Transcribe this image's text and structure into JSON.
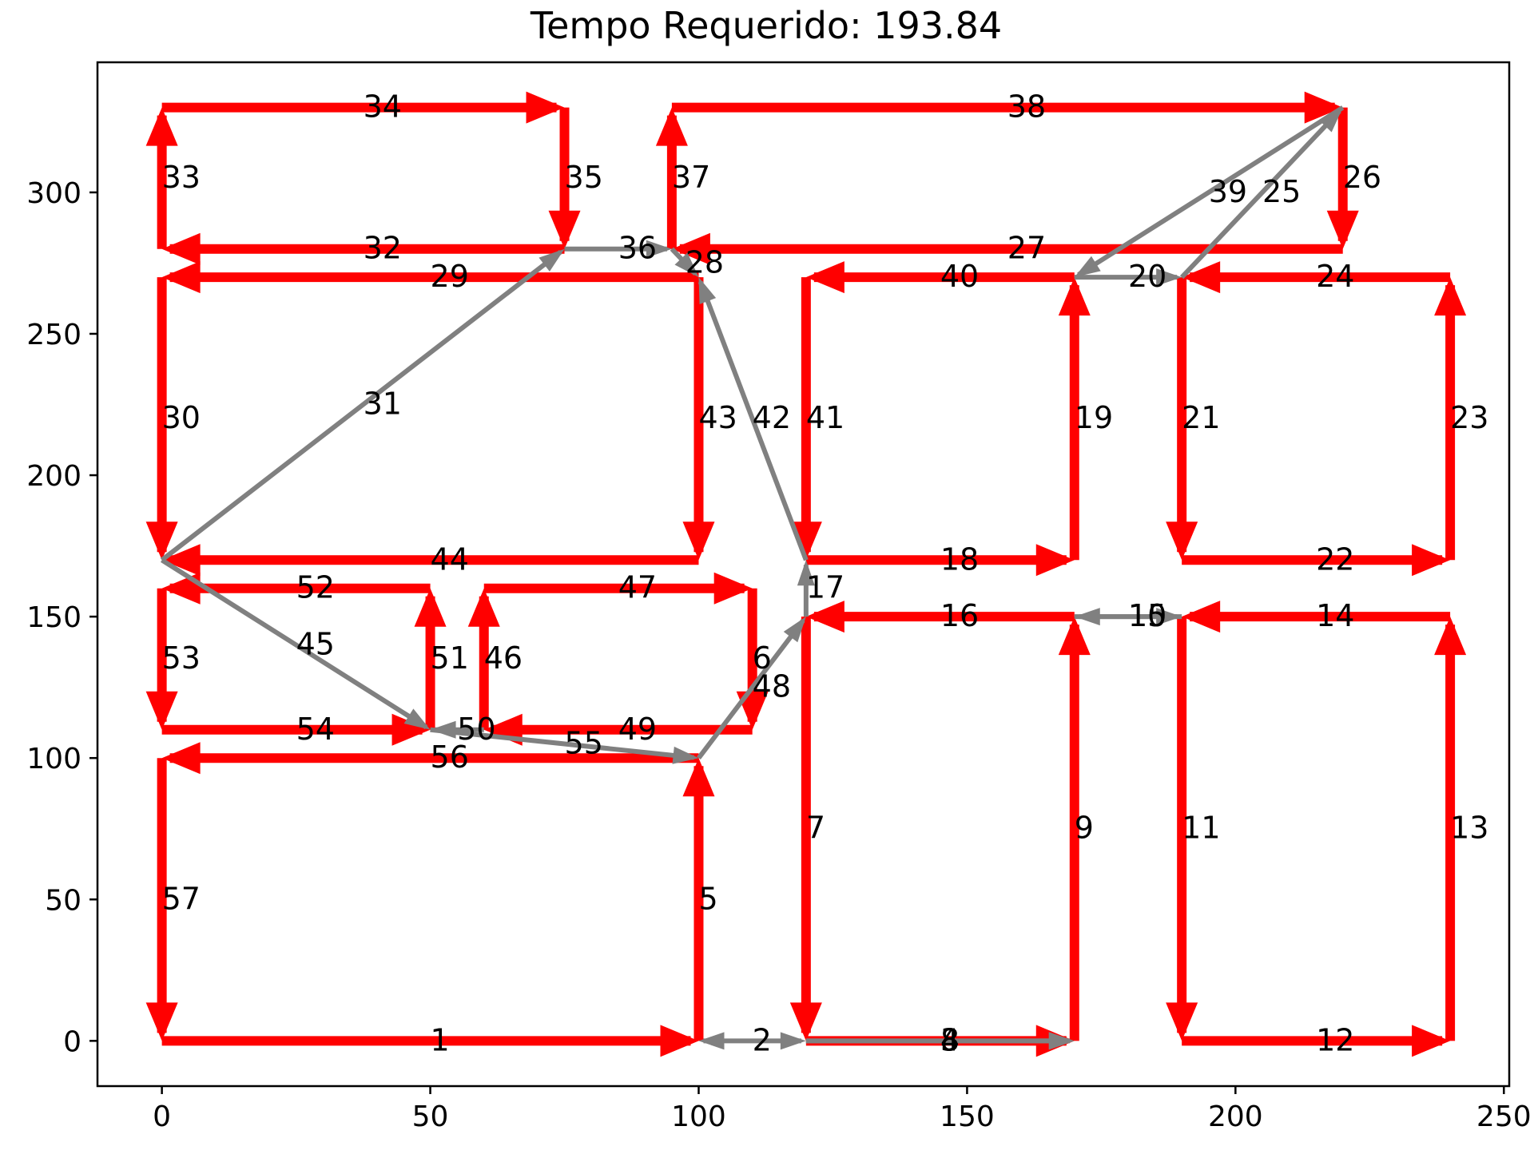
{
  "chart_data": {
    "type": "route-graph",
    "title": "Tempo Requerido: 193.84",
    "xlabel": "",
    "ylabel": "",
    "xlim": [
      -12,
      251
    ],
    "ylim": [
      -16,
      346
    ],
    "xticks": [
      0,
      50,
      100,
      150,
      200,
      250
    ],
    "yticks": [
      0,
      50,
      100,
      150,
      200,
      250,
      300
    ],
    "grid": false,
    "legend": null,
    "colors": {
      "required": "#ff0000",
      "deadhead": "#808080"
    },
    "edges": [
      {
        "id": 1,
        "kind": "required",
        "from": [
          0,
          0
        ],
        "to": [
          100,
          0
        ]
      },
      {
        "id": 2,
        "kind": "deadhead",
        "from": [
          100,
          0
        ],
        "to": [
          120,
          0
        ],
        "both_ends": true
      },
      {
        "id": 3,
        "kind": "required",
        "from": [
          120,
          0
        ],
        "to": [
          170,
          0
        ]
      },
      {
        "id": 4,
        "kind": "deadhead",
        "from": [
          120,
          0
        ],
        "to": [
          170,
          0
        ]
      },
      {
        "id": 5,
        "kind": "required",
        "from": [
          100,
          0
        ],
        "to": [
          100,
          100
        ]
      },
      {
        "id": 6,
        "kind": "required",
        "from": [
          110,
          160
        ],
        "to": [
          110,
          110
        ]
      },
      {
        "id": 7,
        "kind": "required",
        "from": [
          120,
          150
        ],
        "to": [
          120,
          0
        ]
      },
      {
        "id": 8,
        "kind": "deadhead",
        "from": [
          120,
          0
        ],
        "to": [
          170,
          0
        ]
      },
      {
        "id": 9,
        "kind": "required",
        "from": [
          170,
          0
        ],
        "to": [
          170,
          150
        ]
      },
      {
        "id": 10,
        "kind": "deadhead",
        "from": [
          170,
          150
        ],
        "to": [
          190,
          150
        ]
      },
      {
        "id": 11,
        "kind": "required",
        "from": [
          190,
          150
        ],
        "to": [
          190,
          0
        ]
      },
      {
        "id": 12,
        "kind": "required",
        "from": [
          190,
          0
        ],
        "to": [
          240,
          0
        ]
      },
      {
        "id": 13,
        "kind": "required",
        "from": [
          240,
          0
        ],
        "to": [
          240,
          150
        ]
      },
      {
        "id": 14,
        "kind": "required",
        "from": [
          240,
          150
        ],
        "to": [
          190,
          150
        ]
      },
      {
        "id": 15,
        "kind": "deadhead",
        "from": [
          190,
          150
        ],
        "to": [
          170,
          150
        ]
      },
      {
        "id": 16,
        "kind": "required",
        "from": [
          170,
          150
        ],
        "to": [
          120,
          150
        ]
      },
      {
        "id": 17,
        "kind": "deadhead",
        "from": [
          120,
          150
        ],
        "to": [
          120,
          170
        ]
      },
      {
        "id": 18,
        "kind": "required",
        "from": [
          120,
          170
        ],
        "to": [
          170,
          170
        ]
      },
      {
        "id": 19,
        "kind": "required",
        "from": [
          170,
          170
        ],
        "to": [
          170,
          270
        ]
      },
      {
        "id": 20,
        "kind": "deadhead",
        "from": [
          170,
          270
        ],
        "to": [
          190,
          270
        ]
      },
      {
        "id": 21,
        "kind": "required",
        "from": [
          190,
          270
        ],
        "to": [
          190,
          170
        ]
      },
      {
        "id": 22,
        "kind": "required",
        "from": [
          190,
          170
        ],
        "to": [
          240,
          170
        ]
      },
      {
        "id": 23,
        "kind": "required",
        "from": [
          240,
          170
        ],
        "to": [
          240,
          270
        ]
      },
      {
        "id": 24,
        "kind": "required",
        "from": [
          240,
          270
        ],
        "to": [
          190,
          270
        ]
      },
      {
        "id": 25,
        "kind": "deadhead",
        "from": [
          190,
          270
        ],
        "to": [
          220,
          330
        ]
      },
      {
        "id": 26,
        "kind": "required",
        "from": [
          220,
          330
        ],
        "to": [
          220,
          280
        ]
      },
      {
        "id": 27,
        "kind": "required",
        "from": [
          220,
          280
        ],
        "to": [
          95,
          280
        ]
      },
      {
        "id": 28,
        "kind": "deadhead",
        "from": [
          95,
          280
        ],
        "to": [
          100,
          270
        ]
      },
      {
        "id": 29,
        "kind": "required",
        "from": [
          100,
          270
        ],
        "to": [
          0,
          270
        ]
      },
      {
        "id": 30,
        "kind": "required",
        "from": [
          0,
          270
        ],
        "to": [
          0,
          170
        ]
      },
      {
        "id": 31,
        "kind": "deadhead",
        "from": [
          0,
          170
        ],
        "to": [
          75,
          280
        ]
      },
      {
        "id": 32,
        "kind": "required",
        "from": [
          75,
          280
        ],
        "to": [
          0,
          280
        ]
      },
      {
        "id": 33,
        "kind": "required",
        "from": [
          0,
          280
        ],
        "to": [
          0,
          330
        ]
      },
      {
        "id": 34,
        "kind": "required",
        "from": [
          0,
          330
        ],
        "to": [
          75,
          330
        ]
      },
      {
        "id": 35,
        "kind": "required",
        "from": [
          75,
          330
        ],
        "to": [
          75,
          280
        ]
      },
      {
        "id": 36,
        "kind": "deadhead",
        "from": [
          75,
          280
        ],
        "to": [
          95,
          280
        ]
      },
      {
        "id": 37,
        "kind": "required",
        "from": [
          95,
          280
        ],
        "to": [
          95,
          330
        ]
      },
      {
        "id": 38,
        "kind": "required",
        "from": [
          95,
          330
        ],
        "to": [
          220,
          330
        ]
      },
      {
        "id": 39,
        "kind": "deadhead",
        "from": [
          220,
          330
        ],
        "to": [
          170,
          270
        ]
      },
      {
        "id": 40,
        "kind": "required",
        "from": [
          170,
          270
        ],
        "to": [
          120,
          270
        ]
      },
      {
        "id": 41,
        "kind": "required",
        "from": [
          120,
          270
        ],
        "to": [
          120,
          170
        ]
      },
      {
        "id": 42,
        "kind": "deadhead",
        "from": [
          120,
          170
        ],
        "to": [
          100,
          270
        ]
      },
      {
        "id": 43,
        "kind": "required",
        "from": [
          100,
          270
        ],
        "to": [
          100,
          170
        ]
      },
      {
        "id": 44,
        "kind": "required",
        "from": [
          100,
          170
        ],
        "to": [
          0,
          170
        ]
      },
      {
        "id": 45,
        "kind": "deadhead",
        "from": [
          0,
          170
        ],
        "to": [
          50,
          110
        ]
      },
      {
        "id": 46,
        "kind": "required",
        "from": [
          60,
          110
        ],
        "to": [
          60,
          160
        ]
      },
      {
        "id": 47,
        "kind": "required",
        "from": [
          60,
          160
        ],
        "to": [
          110,
          160
        ]
      },
      {
        "id": 48,
        "kind": "deadhead",
        "from": [
          100,
          100
        ],
        "to": [
          120,
          150
        ]
      },
      {
        "id": 49,
        "kind": "required",
        "from": [
          110,
          110
        ],
        "to": [
          60,
          110
        ]
      },
      {
        "id": 50,
        "kind": "deadhead",
        "from": [
          60,
          110
        ],
        "to": [
          50,
          110
        ]
      },
      {
        "id": 51,
        "kind": "required",
        "from": [
          50,
          110
        ],
        "to": [
          50,
          160
        ]
      },
      {
        "id": 52,
        "kind": "required",
        "from": [
          50,
          160
        ],
        "to": [
          0,
          160
        ]
      },
      {
        "id": 53,
        "kind": "required",
        "from": [
          0,
          160
        ],
        "to": [
          0,
          110
        ]
      },
      {
        "id": 54,
        "kind": "required",
        "from": [
          0,
          110
        ],
        "to": [
          50,
          110
        ]
      },
      {
        "id": 55,
        "kind": "deadhead",
        "from": [
          50,
          110
        ],
        "to": [
          100,
          100
        ]
      },
      {
        "id": 56,
        "kind": "required",
        "from": [
          100,
          100
        ],
        "to": [
          0,
          100
        ]
      },
      {
        "id": 57,
        "kind": "required",
        "from": [
          0,
          100
        ],
        "to": [
          0,
          0
        ]
      }
    ]
  }
}
